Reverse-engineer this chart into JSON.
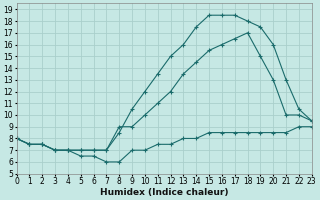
{
  "bg_color": "#c6e8e4",
  "grid_color": "#aacfcc",
  "line_color": "#1a6b6b",
  "line1_x": [
    0,
    1,
    2,
    3,
    4,
    5,
    6,
    7,
    8,
    9,
    10,
    11,
    12,
    13,
    14,
    15,
    16,
    17,
    18,
    19,
    20,
    21,
    22,
    23
  ],
  "line1_y": [
    8,
    7.5,
    7.5,
    7,
    7,
    6.5,
    6.5,
    6,
    6,
    7,
    7,
    7.5,
    7.5,
    8,
    8,
    8.5,
    8.5,
    8.5,
    8.5,
    8.5,
    8.5,
    8.5,
    9,
    9
  ],
  "line2_x": [
    0,
    1,
    2,
    3,
    4,
    5,
    6,
    7,
    8,
    9,
    10,
    11,
    12,
    13,
    14,
    15,
    16,
    17,
    18,
    19,
    20,
    21,
    22,
    23
  ],
  "line2_y": [
    8,
    7.5,
    7.5,
    7,
    7,
    7,
    7,
    7,
    9,
    9,
    10,
    11,
    12,
    13.5,
    14.5,
    15.5,
    16,
    16.5,
    17,
    15,
    13,
    10,
    10,
    9.5
  ],
  "line3_x": [
    0,
    1,
    2,
    3,
    4,
    5,
    6,
    7,
    8,
    9,
    10,
    11,
    12,
    13,
    14,
    15,
    16,
    17,
    18,
    19,
    20,
    21,
    22,
    23
  ],
  "line3_y": [
    8,
    7.5,
    7.5,
    7,
    7,
    7,
    7,
    7,
    8.5,
    10.5,
    12,
    13.5,
    15,
    16,
    17.5,
    18.5,
    18.5,
    18.5,
    18,
    17.5,
    16,
    13,
    10.5,
    9.5
  ],
  "xlabel": "Humidex (Indice chaleur)",
  "xlim": [
    0,
    23
  ],
  "ylim": [
    5,
    19.5
  ],
  "xticks": [
    0,
    1,
    2,
    3,
    4,
    5,
    6,
    7,
    8,
    9,
    10,
    11,
    12,
    13,
    14,
    15,
    16,
    17,
    18,
    19,
    20,
    21,
    22,
    23
  ],
  "yticks": [
    5,
    6,
    7,
    8,
    9,
    10,
    11,
    12,
    13,
    14,
    15,
    16,
    17,
    18,
    19
  ],
  "xlabel_fontsize": 6.5,
  "tick_fontsize": 5.5
}
